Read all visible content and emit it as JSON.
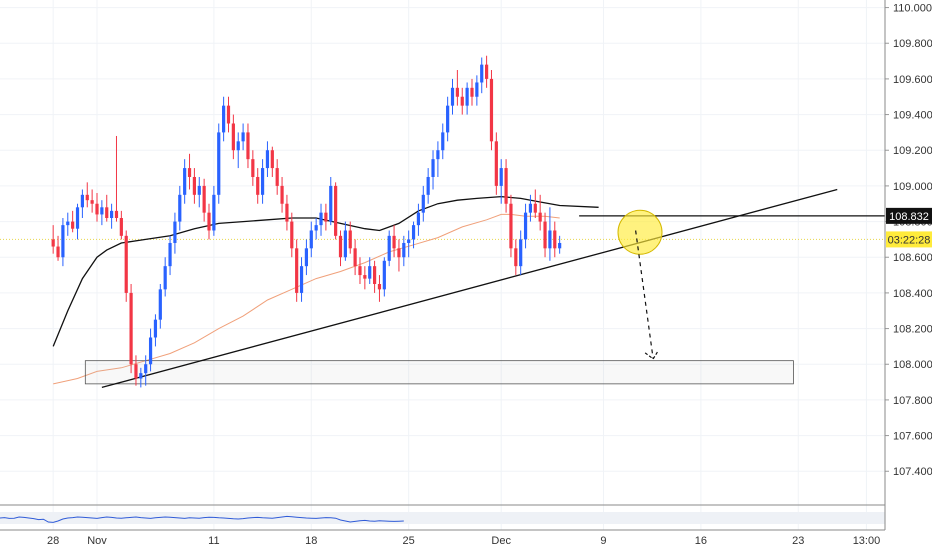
{
  "chart_data": {
    "type": "candlestick",
    "y_axis": {
      "range": [
        107.25,
        110.02
      ],
      "ticks": [
        "110.000",
        "109.800",
        "109.600",
        "109.400",
        "109.200",
        "109.000",
        "108.800",
        "108.600",
        "108.400",
        "108.200",
        "108.000",
        "107.800",
        "107.600",
        "107.400"
      ]
    },
    "x_axis": {
      "labels": [
        {
          "text": "28",
          "bar": -9
        },
        {
          "text": "Nov",
          "bar": 0
        },
        {
          "text": "11",
          "bar": 24
        },
        {
          "text": "18",
          "bar": 44
        },
        {
          "text": "25",
          "bar": 64
        },
        {
          "text": "Dec",
          "bar": 83
        },
        {
          "text": "9",
          "bar": 104
        },
        {
          "text": "16",
          "bar": 124
        },
        {
          "text": "23",
          "bar": 144
        },
        {
          "text": "13:00",
          "bar": 158
        }
      ]
    },
    "price_tags": [
      {
        "text": "108.832",
        "value": 108.832,
        "bg": "#111111",
        "fg": "#ffffff"
      },
      {
        "text": "03:22:28",
        "value": 108.7,
        "bg": "#ffeb3b",
        "fg": "#333333"
      }
    ],
    "candles": [
      [
        108.7,
        108.78,
        108.62,
        108.66
      ],
      [
        108.66,
        108.72,
        108.58,
        108.6
      ],
      [
        108.6,
        108.82,
        108.55,
        108.78
      ],
      [
        108.78,
        108.85,
        108.72,
        108.8
      ],
      [
        108.8,
        108.86,
        108.74,
        108.76
      ],
      [
        108.76,
        108.9,
        108.7,
        108.88
      ],
      [
        108.88,
        108.98,
        108.82,
        108.95
      ],
      [
        108.95,
        109.02,
        108.88,
        108.92
      ],
      [
        108.92,
        108.98,
        108.85,
        108.9
      ],
      [
        108.9,
        108.96,
        108.8,
        108.84
      ],
      [
        108.84,
        108.92,
        108.78,
        108.88
      ],
      [
        108.88,
        108.95,
        108.8,
        108.82
      ],
      [
        108.82,
        108.9,
        108.76,
        108.86
      ],
      [
        108.86,
        109.28,
        108.8,
        108.82
      ],
      [
        108.82,
        108.86,
        108.7,
        108.72
      ],
      [
        108.72,
        108.75,
        108.35,
        108.4
      ],
      [
        108.4,
        108.45,
        107.95,
        108.0
      ],
      [
        108.0,
        108.05,
        107.88,
        107.92
      ],
      [
        107.92,
        107.98,
        107.87,
        107.95
      ],
      [
        107.95,
        108.05,
        107.88,
        108.0
      ],
      [
        108.0,
        108.2,
        107.96,
        108.15
      ],
      [
        108.15,
        108.28,
        108.1,
        108.25
      ],
      [
        108.25,
        108.45,
        108.2,
        108.42
      ],
      [
        108.42,
        108.6,
        108.38,
        108.55
      ],
      [
        108.55,
        108.72,
        108.5,
        108.68
      ],
      [
        108.68,
        108.85,
        108.62,
        108.8
      ],
      [
        108.8,
        109.0,
        108.75,
        108.95
      ],
      [
        108.95,
        109.15,
        108.9,
        109.1
      ],
      [
        109.1,
        109.18,
        108.98,
        109.05
      ],
      [
        109.05,
        109.1,
        108.9,
        108.95
      ],
      [
        108.95,
        109.05,
        108.88,
        109.0
      ],
      [
        109.0,
        109.04,
        108.8,
        108.85
      ],
      [
        108.85,
        108.9,
        108.7,
        108.75
      ],
      [
        108.75,
        109.0,
        108.72,
        108.95
      ],
      [
        108.95,
        109.35,
        108.9,
        109.3
      ],
      [
        109.3,
        109.5,
        109.25,
        109.45
      ],
      [
        109.45,
        109.5,
        109.3,
        109.35
      ],
      [
        109.35,
        109.4,
        109.15,
        109.2
      ],
      [
        109.2,
        109.3,
        109.1,
        109.25
      ],
      [
        109.25,
        109.35,
        109.2,
        109.3
      ],
      [
        109.3,
        109.35,
        109.1,
        109.15
      ],
      [
        109.15,
        109.2,
        109.0,
        109.05
      ],
      [
        109.05,
        109.1,
        108.9,
        108.95
      ],
      [
        108.95,
        109.15,
        108.9,
        109.1
      ],
      [
        109.1,
        109.25,
        109.05,
        109.2
      ],
      [
        109.2,
        109.22,
        109.05,
        109.1
      ],
      [
        109.1,
        109.15,
        108.95,
        109.0
      ],
      [
        109.0,
        109.05,
        108.85,
        108.9
      ],
      [
        108.9,
        108.95,
        108.75,
        108.8
      ],
      [
        108.8,
        108.85,
        108.6,
        108.65
      ],
      [
        108.65,
        108.7,
        108.35,
        108.4
      ],
      [
        108.4,
        108.6,
        108.35,
        108.55
      ],
      [
        108.55,
        108.7,
        108.5,
        108.65
      ],
      [
        108.65,
        108.8,
        108.6,
        108.75
      ],
      [
        108.75,
        108.82,
        108.7,
        108.78
      ],
      [
        108.78,
        108.9,
        108.72,
        108.85
      ],
      [
        108.85,
        108.9,
        108.75,
        108.8
      ],
      [
        108.8,
        109.05,
        108.78,
        109.0
      ],
      [
        109.0,
        109.02,
        108.7,
        108.72
      ],
      [
        108.72,
        108.75,
        108.55,
        108.6
      ],
      [
        108.6,
        108.8,
        108.58,
        108.75
      ],
      [
        108.75,
        108.8,
        108.62,
        108.65
      ],
      [
        108.65,
        108.7,
        108.5,
        108.55
      ],
      [
        108.55,
        108.6,
        108.45,
        108.5
      ],
      [
        108.5,
        108.55,
        108.42,
        108.48
      ],
      [
        108.48,
        108.6,
        108.45,
        108.55
      ],
      [
        108.55,
        108.58,
        108.4,
        108.45
      ],
      [
        108.45,
        108.5,
        108.35,
        108.42
      ],
      [
        108.42,
        108.6,
        108.38,
        108.58
      ],
      [
        108.58,
        108.75,
        108.55,
        108.72
      ],
      [
        108.72,
        108.78,
        108.6,
        108.65
      ],
      [
        108.65,
        108.7,
        108.52,
        108.6
      ],
      [
        108.6,
        108.72,
        108.55,
        108.68
      ],
      [
        108.68,
        108.75,
        108.6,
        108.7
      ],
      [
        108.7,
        108.8,
        108.65,
        108.78
      ],
      [
        108.78,
        108.9,
        108.72,
        108.85
      ],
      [
        108.85,
        109.0,
        108.8,
        108.95
      ],
      [
        108.95,
        109.1,
        108.9,
        109.05
      ],
      [
        109.05,
        109.2,
        108.98,
        109.15
      ],
      [
        109.15,
        109.25,
        109.05,
        109.2
      ],
      [
        109.2,
        109.35,
        109.15,
        109.3
      ],
      [
        109.3,
        109.5,
        109.25,
        109.45
      ],
      [
        109.45,
        109.6,
        109.4,
        109.55
      ],
      [
        109.55,
        109.65,
        109.45,
        109.5
      ],
      [
        109.5,
        109.55,
        109.4,
        109.45
      ],
      [
        109.45,
        109.58,
        109.4,
        109.55
      ],
      [
        109.55,
        109.6,
        109.45,
        109.5
      ],
      [
        109.5,
        109.62,
        109.45,
        109.58
      ],
      [
        109.58,
        109.72,
        109.52,
        109.68
      ],
      [
        109.68,
        109.73,
        109.55,
        109.6
      ],
      [
        109.6,
        109.65,
        109.2,
        109.25
      ],
      [
        109.25,
        109.3,
        108.95,
        109.0
      ],
      [
        109.0,
        109.15,
        108.9,
        109.1
      ],
      [
        109.1,
        109.15,
        108.85,
        108.9
      ],
      [
        108.9,
        108.95,
        108.6,
        108.65
      ],
      [
        108.65,
        108.7,
        108.5,
        108.55
      ],
      [
        108.55,
        108.75,
        108.5,
        108.7
      ],
      [
        108.7,
        108.9,
        108.65,
        108.85
      ],
      [
        108.85,
        108.95,
        108.8,
        108.9
      ],
      [
        108.9,
        108.98,
        108.82,
        108.85
      ],
      [
        108.85,
        108.95,
        108.75,
        108.8
      ],
      [
        108.8,
        108.85,
        108.6,
        108.65
      ],
      [
        108.65,
        108.88,
        108.58,
        108.75
      ],
      [
        108.75,
        108.8,
        108.6,
        108.65
      ],
      [
        108.65,
        108.72,
        108.62,
        108.68
      ]
    ],
    "series": [
      {
        "name": "",
        "color": "#111111",
        "values": [
          [
            -9,
            108.1
          ],
          [
            -6,
            108.3
          ],
          [
            -3,
            108.48
          ],
          [
            -1,
            108.56
          ],
          [
            0,
            108.6
          ],
          [
            2,
            108.64
          ],
          [
            5,
            108.68
          ],
          [
            10,
            108.7
          ],
          [
            15,
            108.72
          ],
          [
            20,
            108.76
          ],
          [
            25,
            108.79
          ],
          [
            30,
            108.8
          ],
          [
            35,
            108.81
          ],
          [
            40,
            108.82
          ],
          [
            45,
            108.82
          ],
          [
            50,
            108.79
          ],
          [
            55,
            108.76
          ],
          [
            58,
            108.75
          ],
          [
            62,
            108.79
          ],
          [
            66,
            108.86
          ],
          [
            70,
            108.9
          ],
          [
            74,
            108.92
          ],
          [
            78,
            108.93
          ],
          [
            83,
            108.94
          ],
          [
            87,
            108.93
          ],
          [
            91,
            108.91
          ],
          [
            95,
            108.89
          ],
          [
            103,
            108.88
          ]
        ]
      },
      {
        "name": "",
        "color": "#f0a07a",
        "values": [
          [
            -9,
            107.89
          ],
          [
            -4,
            107.92
          ],
          [
            0,
            107.96
          ],
          [
            5,
            107.98
          ],
          [
            10,
            108.02
          ],
          [
            15,
            108.06
          ],
          [
            20,
            108.12
          ],
          [
            25,
            108.2
          ],
          [
            30,
            108.27
          ],
          [
            35,
            108.36
          ],
          [
            40,
            108.42
          ],
          [
            45,
            108.48
          ],
          [
            50,
            108.52
          ],
          [
            55,
            108.57
          ],
          [
            60,
            108.63
          ],
          [
            65,
            108.67
          ],
          [
            70,
            108.71
          ],
          [
            75,
            108.77
          ],
          [
            80,
            108.81
          ],
          [
            83,
            108.84
          ],
          [
            85,
            108.84
          ],
          [
            88,
            108.83
          ],
          [
            92,
            108.83
          ],
          [
            95,
            108.82
          ]
        ]
      }
    ],
    "oscillator": {
      "color": "#2f5bd8",
      "values": [
        50,
        52,
        48,
        49,
        55,
        53,
        50,
        47,
        42,
        44,
        30,
        28,
        35,
        45,
        50,
        52,
        55,
        54,
        52,
        50,
        48,
        52,
        55,
        53,
        50,
        49,
        51,
        53,
        55,
        52,
        50,
        48,
        51,
        53,
        55,
        54,
        52,
        50,
        48,
        51,
        50,
        49,
        52,
        54,
        53,
        51,
        50,
        48,
        46,
        45,
        47,
        50,
        52,
        53,
        51,
        50,
        49,
        52,
        55,
        58,
        56,
        54,
        52,
        50,
        49,
        48,
        50,
        52,
        51,
        49,
        40,
        35,
        30,
        33,
        36,
        38,
        35,
        34,
        36,
        35,
        34,
        33,
        34,
        35
      ]
    }
  }
}
